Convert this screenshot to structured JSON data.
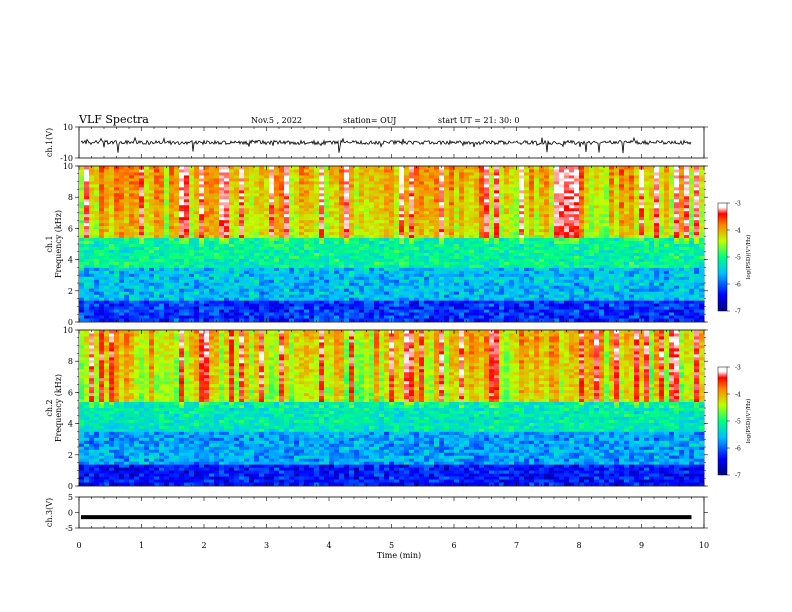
{
  "header": {
    "title": "VLF Spectra",
    "date": "Nov.5 , 2022",
    "station": "station= OUJ",
    "start": "start UT = 21: 30: 0"
  },
  "chart_data": [
    {
      "type": "line",
      "panel": "ch1-waveform",
      "ylabel": "ch.1(V)",
      "ylim": [
        -10,
        10
      ],
      "yticks": [
        "10",
        "-10"
      ],
      "x": [
        0,
        9.8
      ],
      "values": [
        0,
        0
      ],
      "note_series": "broadband waveform near 0 V with spikes"
    },
    {
      "type": "heatmap",
      "panel": "ch1-spectrogram",
      "ylabel_top": "ch.1",
      "ylabel": "Frequency (kHz)",
      "ylim": [
        0,
        10
      ],
      "yticks": [
        "0",
        "2",
        "4",
        "6",
        "8",
        "10"
      ],
      "xlim": [
        0,
        10
      ],
      "colorbar": {
        "label": "log(PSD)(V²/Hz)",
        "range": [
          -7,
          -3
        ],
        "ticks": [
          "-3",
          "-4",
          "-5",
          "-6",
          "-7"
        ]
      }
    },
    {
      "type": "heatmap",
      "panel": "ch2-spectrogram",
      "ylabel_top": "ch.2",
      "ylabel": "Frequency (kHz)",
      "ylim": [
        0,
        10
      ],
      "yticks": [
        "0",
        "2",
        "4",
        "6",
        "8",
        "10"
      ],
      "xlim": [
        0,
        10
      ],
      "colorbar": {
        "label": "log(PSD)(V²/Hz)",
        "range": [
          -7,
          -3
        ],
        "ticks": [
          "-3",
          "-4",
          "-5",
          "-6",
          "-7"
        ]
      }
    },
    {
      "type": "line",
      "panel": "ch3-waveform",
      "ylabel": "ch.3(V)",
      "ylim": [
        -5,
        5
      ],
      "yticks": [
        "5",
        "0",
        "-5"
      ],
      "x": [
        0,
        9.8
      ],
      "values": [
        -1.5,
        -1.5
      ]
    }
  ],
  "xaxis": {
    "label": "Time (min)",
    "ticks": [
      "0",
      "1",
      "2",
      "3",
      "4",
      "5",
      "6",
      "7",
      "8",
      "9",
      "10"
    ]
  }
}
